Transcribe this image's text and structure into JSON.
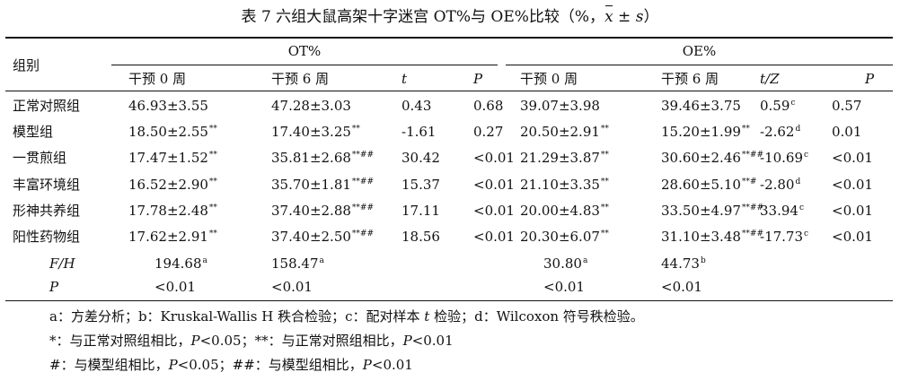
{
  "title": {
    "prefix": "表 7  六组大鼠高架十字迷宫 OT%与 OE%比较（%，",
    "xbar": "x",
    "stat": " ± s",
    "suffix": "）"
  },
  "header": {
    "group_col": "组别",
    "ot": "OT%",
    "oe": "OE%",
    "ot_sub": [
      "干预 0 周",
      "干预 6 周",
      "t",
      "P"
    ],
    "oe_sub": [
      "干预 0 周",
      "干预 6 周",
      "t/Z",
      "P"
    ]
  },
  "rows": [
    {
      "group": "正常对照组",
      "ot0": "46.93±3.55",
      "ot0_sup": "",
      "ot6": "47.28±3.03",
      "ot6_sup": "",
      "t": "0.43",
      "p1": "0.68",
      "oe0": "39.07±3.98",
      "oe0_sup": "",
      "oe6": "39.46±3.75",
      "oe6_sup": "",
      "tz": "0.59",
      "tz_sup": "c",
      "p2": "0.57"
    },
    {
      "group": "模型组",
      "ot0": "18.50±2.55",
      "ot0_sup": "**",
      "ot6": "17.40±3.25",
      "ot6_sup": "**",
      "t": "-1.61",
      "p1": "0.27",
      "oe0": "20.50±2.91",
      "oe0_sup": "**",
      "oe6": "15.20±1.99",
      "oe6_sup": "**",
      "tz": "-2.62",
      "tz_sup": "d",
      "p2": "0.01"
    },
    {
      "group": "一贯煎组",
      "ot0": "17.47±1.52",
      "ot0_sup": "**",
      "ot6": "35.81±2.68",
      "ot6_sup": "**##",
      "t": "30.42",
      "p1": "<0.01",
      "oe0": "21.29±3.87",
      "oe0_sup": "**",
      "oe6": "30.60±2.46",
      "oe6_sup": "**##",
      "tz": "-10.69",
      "tz_sup": "c",
      "p2": "<0.01"
    },
    {
      "group": "丰富环境组",
      "ot0": "16.52±2.90",
      "ot0_sup": "**",
      "ot6": "35.70±1.81",
      "ot6_sup": "**##",
      "t": "15.37",
      "p1": "<0.01",
      "oe0": "21.10±3.35",
      "oe0_sup": "**",
      "oe6": "28.60±5.10",
      "oe6_sup": "**#",
      "tz": "-2.80",
      "tz_sup": "d",
      "p2": "<0.01"
    },
    {
      "group": "形神共养组",
      "ot0": "17.78±2.48",
      "ot0_sup": "**",
      "ot6": "37.40±2.88",
      "ot6_sup": "**##",
      "t": "17.11",
      "p1": "<0.01",
      "oe0": "20.00±4.83",
      "oe0_sup": "**",
      "oe6": "33.50±4.97",
      "oe6_sup": "**##",
      "tz": "33.94",
      "tz_sup": "c",
      "p2": "<0.01"
    },
    {
      "group": "阳性药物组",
      "ot0": "17.62±2.91",
      "ot0_sup": "**",
      "ot6": "37.40±2.50",
      "ot6_sup": "**##",
      "t": "18.56",
      "p1": "<0.01",
      "oe0": "20.30±6.07",
      "oe0_sup": "**",
      "oe6": "31.10±3.48",
      "oe6_sup": "**##",
      "tz": "-17.73",
      "tz_sup": "c",
      "p2": "<0.01"
    }
  ],
  "fh_row": {
    "label": "F/H",
    "ot0": "194.68",
    "ot0_sup": "a",
    "ot6": "158.47",
    "ot6_sup": "a",
    "oe0": "30.80",
    "oe0_sup": "a",
    "oe6": "44.73",
    "oe6_sup": "b"
  },
  "p_row": {
    "label": "P",
    "ot0": "<0.01",
    "ot6": "<0.01",
    "oe0": "<0.01",
    "oe6": "<0.01"
  },
  "notes": {
    "line1_a": "a：方差分析；b：Kruskal-Wallis H 秩合检验；c：配对样本 ",
    "line1_t": "t",
    "line1_b": " 检验；d：Wilcoxon 符号秩检验。",
    "line2_a": "*：与正常对照组相比，",
    "line2_p1": "P",
    "line2_b": "<0.05；**：与正常对照组相比，",
    "line2_p2": "P",
    "line2_c": "<0.01",
    "line3_a": "#：与模型组相比，",
    "line3_p1": "P",
    "line3_b": "<0.05；##：与模型组相比，",
    "line3_p2": "P",
    "line3_c": "<0.01"
  }
}
